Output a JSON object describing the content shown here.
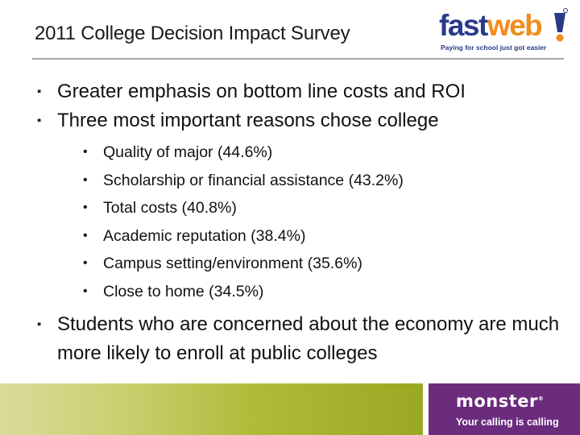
{
  "title": "2011 College Decision Impact Survey",
  "logo": {
    "fastweb_part1": "fast",
    "fastweb_part2": "web",
    "fastweb_tagline": "Paying for school just got easier",
    "monster_name": "monster",
    "monster_tagline": "Your calling is calling"
  },
  "bullets": [
    {
      "text": "Greater emphasis on bottom line costs and ROI",
      "sub": []
    },
    {
      "text": "Three most important reasons chose college",
      "sub": [
        "Quality of major (44.6%)",
        "Scholarship or financial assistance (43.2%)",
        "Total costs (40.8%)",
        "Academic reputation (38.4%)",
        "Campus setting/environment (35.6%)",
        "Close to home (34.5%)"
      ]
    },
    {
      "text": "Students who are concerned about the economy are much more likely to enroll at public colleges",
      "sub": []
    }
  ],
  "colors": {
    "fastweb_blue": "#2a3a88",
    "fastweb_orange": "#f28c1e",
    "footer_green": "#b1bb3a",
    "footer_purple": "#6b2c7d"
  },
  "icons": [
    "square-bullet-icon",
    "round-bullet-icon"
  ]
}
